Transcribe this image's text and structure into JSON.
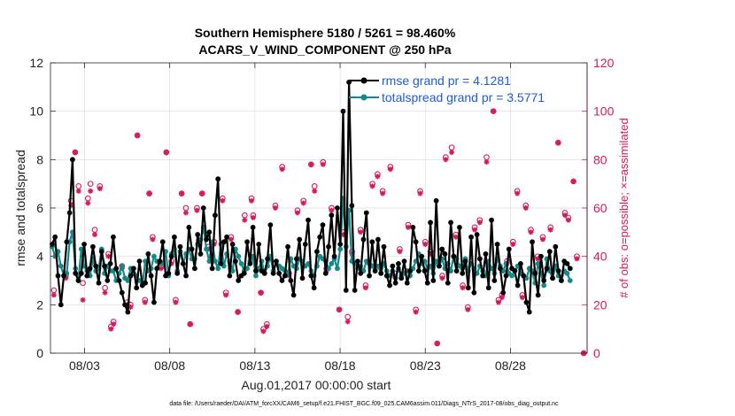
{
  "chart_data": {
    "type": "line",
    "title_line1": "Southern Hemisphere 5180 / 5261 = 98.460%",
    "title_line2": "ACARS_V_WIND_COMPONENT @ 250 hPa",
    "xlabel": "Aug.01,2017 00:00:00 start",
    "ylabel_left": "rmse and totalspread",
    "ylabel_right": "# of obs: o=possible; ×=assimilated",
    "xlim": [
      1,
      32.5
    ],
    "ylim_left": [
      0,
      12
    ],
    "ylim_right": [
      0,
      120
    ],
    "x_ticks": [
      {
        "value": 3,
        "label": "08/03"
      },
      {
        "value": 8,
        "label": "08/08"
      },
      {
        "value": 13,
        "label": "08/13"
      },
      {
        "value": 18,
        "label": "08/18"
      },
      {
        "value": 23,
        "label": "08/23"
      },
      {
        "value": 28,
        "label": "08/28"
      }
    ],
    "y_ticks_left": [
      "0",
      "2",
      "4",
      "6",
      "8",
      "10",
      "12"
    ],
    "y_ticks_right": [
      "0",
      "20",
      "40",
      "60",
      "80",
      "100",
      "120"
    ],
    "series": [
      {
        "name": "rmse grand pr = 4.1281",
        "color": "#000000",
        "axis": "left",
        "values": [
          4.5,
          4.8,
          3.2,
          2.0,
          3.2,
          4.6,
          5.8,
          8.0,
          3.3,
          3.0,
          3.3,
          4.5,
          3.2,
          3.5,
          4.4,
          3.6,
          2.9,
          4.2,
          3.6,
          3.0,
          3.7,
          4.8,
          3.5,
          3.0,
          2.5,
          2.0,
          1.7,
          3.2,
          3.5,
          2.7,
          3.8,
          2.8,
          2.9,
          4.1,
          3.2,
          2.1,
          3.5,
          3.8,
          4.6,
          3.2,
          3.3,
          4.0,
          4.8,
          3.3,
          4.4,
          3.7,
          3.2,
          5.2,
          4.3,
          3.5,
          4.9,
          4.1,
          6.0,
          4.7,
          5.0,
          3.5,
          5.7,
          7.2,
          3.7,
          4.6,
          4.8,
          3.2,
          4.5,
          3.8,
          3.0,
          3.2,
          3.3,
          4.6,
          3.7,
          5.2,
          3.4,
          4.5,
          3.4,
          3.3,
          3.9,
          5.3,
          3.3,
          3.8,
          3.3,
          3.0,
          3.2,
          4.4,
          3.0,
          2.4,
          3.9,
          4.7,
          3.1,
          4.5,
          5.5,
          3.2,
          2.7,
          4.2,
          4.8,
          5.3,
          3.3,
          4.4,
          5.7,
          4.0,
          6.0,
          4.5,
          10.0,
          2.6,
          11.2,
          6.1,
          2.6,
          3.8,
          3.3,
          4.7,
          5.8,
          3.2,
          4.6,
          3.4,
          4.7,
          3.3,
          4.4,
          3.2,
          2.8,
          3.6,
          2.9,
          3.7,
          3.1,
          3.8,
          2.9,
          3.4,
          5.2,
          4.6,
          3.4,
          4.0,
          3.4,
          2.9,
          5.4,
          3.0,
          6.3,
          3.6,
          4.3,
          4.1,
          2.9,
          5.4,
          4.0,
          3.4,
          5.2,
          3.3,
          3.8,
          2.7,
          4.8,
          2.5,
          4.9,
          3.9,
          3.2,
          4.1,
          2.7,
          5.5,
          3.0,
          4.5,
          3.5,
          2.5,
          3.2,
          4.3,
          3.5,
          3.4,
          2.8,
          3.7,
          3.2,
          2.1,
          1.7,
          4.6,
          3.3,
          2.4,
          4.0,
          3.0,
          3.5,
          4.2,
          3.1,
          4.4,
          3.4,
          3.0,
          3.8,
          3.7,
          3.5
        ]
      },
      {
        "name": "totalspread grand pr = 3.5771",
        "color": "#138a8a",
        "axis": "left",
        "values": [
          4.4,
          4.0,
          4.2,
          3.6,
          3.2,
          3.3,
          4.6,
          5.0,
          3.5,
          3.0,
          4.3,
          3.6,
          3.4,
          3.2,
          3.9,
          3.4,
          3.5,
          4.3,
          3.3,
          3.6,
          3.4,
          3.4,
          3.0,
          3.3,
          3.6,
          3.1,
          3.0,
          3.5,
          3.3,
          3.2,
          3.0,
          2.8,
          3.8,
          3.4,
          3.5,
          4.0,
          3.8,
          3.7,
          3.7,
          4.2,
          3.2,
          4.1,
          4.3,
          3.4,
          4.2,
          3.7,
          4.1,
          4.3,
          3.9,
          3.9,
          4.5,
          4.7,
          5.2,
          4.3,
          3.8,
          4.6,
          3.8,
          3.5,
          4.5,
          3.6,
          4.1,
          3.8,
          3.4,
          4.3,
          4.0,
          3.7,
          3.4,
          3.5,
          3.8,
          4.0,
          3.2,
          3.5,
          3.8,
          3.3,
          3.6,
          4.0,
          3.4,
          3.8,
          3.6,
          3.5,
          3.4,
          3.3,
          3.9,
          3.6,
          3.5,
          3.9,
          3.8,
          3.6,
          3.7,
          3.4,
          3.2,
          3.6,
          4.0,
          3.9,
          3.8,
          3.5,
          3.7,
          3.9,
          3.5,
          4.3,
          6.4,
          4.4,
          5.9,
          3.8,
          3.7,
          3.5,
          3.6,
          3.4,
          3.8,
          3.7,
          3.6,
          3.5,
          3.6,
          3.3,
          3.7,
          3.4,
          3.2,
          3.4,
          3.1,
          3.5,
          3.2,
          3.3,
          3.4,
          3.2,
          3.5,
          3.8,
          4.1,
          3.7,
          3.8,
          3.5,
          3.6,
          3.3,
          3.8,
          3.6,
          3.9,
          3.5,
          3.7,
          3.4,
          4.0,
          3.9,
          3.6,
          3.5,
          3.9,
          3.4,
          3.7,
          3.5,
          3.3,
          3.6,
          3.4,
          3.2,
          3.8,
          3.5,
          3.3,
          3.9,
          3.6,
          3.4,
          3.7,
          3.3,
          3.2,
          3.4,
          3.6,
          3.3,
          3.2,
          3.1,
          3.5,
          3.4,
          2.9,
          3.7,
          3.3,
          2.8,
          3.9,
          3.4,
          3.1,
          3.6,
          3.2,
          3.0,
          3.4,
          3.3,
          3.0
        ]
      },
      {
        "name": "# of obs possible",
        "color": "#d6185a",
        "axis": "right",
        "marker": "o",
        "points": [
          [
            1.2,
            26
          ],
          [
            1.9,
            32
          ],
          [
            2.2,
            63
          ],
          [
            2.45,
            83
          ],
          [
            2.65,
            69
          ],
          [
            2.9,
            29
          ],
          [
            3.2,
            64
          ],
          [
            3.35,
            70
          ],
          [
            3.6,
            51
          ],
          [
            3.9,
            69
          ],
          [
            4.2,
            27
          ],
          [
            4.4,
            41
          ],
          [
            4.55,
            11
          ],
          [
            4.7,
            13
          ],
          [
            5.2,
            36
          ],
          [
            5.5,
            21
          ],
          [
            5.7,
            20
          ],
          [
            6.1,
            90
          ],
          [
            6.55,
            22
          ],
          [
            6.8,
            66
          ],
          [
            7.0,
            48
          ],
          [
            7.5,
            36
          ],
          [
            7.8,
            83
          ],
          [
            8.1,
            38
          ],
          [
            8.35,
            22
          ],
          [
            8.7,
            66
          ],
          [
            8.95,
            60
          ],
          [
            9.2,
            12
          ],
          [
            9.6,
            60
          ],
          [
            9.9,
            66
          ],
          [
            10.3,
            44
          ],
          [
            10.6,
            46
          ],
          [
            11.1,
            64
          ],
          [
            11.3,
            25
          ],
          [
            11.6,
            48
          ],
          [
            12.0,
            17
          ],
          [
            12.4,
            57
          ],
          [
            12.8,
            64
          ],
          [
            12.9,
            57
          ],
          [
            13.35,
            25
          ],
          [
            13.5,
            10
          ],
          [
            13.7,
            12
          ],
          [
            14.2,
            61
          ],
          [
            14.6,
            77
          ],
          [
            15.0,
            33
          ],
          [
            15.5,
            59
          ],
          [
            15.85,
            63
          ],
          [
            16.3,
            78
          ],
          [
            16.5,
            69
          ],
          [
            17.0,
            79
          ],
          [
            17.2,
            35
          ],
          [
            17.5,
            60
          ],
          [
            17.95,
            18
          ],
          [
            18.2,
            50
          ],
          [
            18.45,
            15
          ],
          [
            18.7,
            42
          ],
          [
            19.2,
            51
          ],
          [
            19.5,
            28
          ],
          [
            19.9,
            70
          ],
          [
            20.2,
            74
          ],
          [
            20.5,
            67
          ],
          [
            20.95,
            77
          ],
          [
            21.2,
            33
          ],
          [
            21.5,
            43
          ],
          [
            22.0,
            53
          ],
          [
            22.45,
            18
          ],
          [
            22.7,
            67
          ],
          [
            23.0,
            46
          ],
          [
            23.3,
            42
          ],
          [
            23.7,
            4
          ],
          [
            24.0,
            32
          ],
          [
            24.2,
            81
          ],
          [
            24.55,
            85
          ],
          [
            24.8,
            49
          ],
          [
            25.2,
            28
          ],
          [
            25.5,
            19
          ],
          [
            25.9,
            52
          ],
          [
            26.2,
            55
          ],
          [
            26.6,
            81
          ],
          [
            27.0,
            100
          ],
          [
            27.3,
            22
          ],
          [
            27.5,
            24
          ],
          [
            27.8,
            38
          ],
          [
            28.15,
            46
          ],
          [
            28.4,
            67
          ],
          [
            28.7,
            24
          ],
          [
            28.9,
            61
          ],
          [
            29.2,
            51
          ],
          [
            29.6,
            40
          ],
          [
            29.9,
            48
          ],
          [
            30.35,
            52
          ],
          [
            30.8,
            87
          ],
          [
            31.2,
            58
          ],
          [
            31.4,
            56
          ],
          [
            31.7,
            71
          ],
          [
            31.9,
            40
          ],
          [
            32.3,
            0
          ]
        ]
      },
      {
        "name": "# of obs assimilated",
        "color": "#d6185a",
        "axis": "right",
        "marker": "*",
        "points": [
          [
            1.2,
            24
          ],
          [
            1.9,
            31
          ],
          [
            2.2,
            61
          ],
          [
            2.45,
            83
          ],
          [
            2.65,
            67
          ],
          [
            2.9,
            22
          ],
          [
            3.2,
            62
          ],
          [
            3.35,
            67
          ],
          [
            3.6,
            49
          ],
          [
            3.9,
            68
          ],
          [
            4.2,
            25
          ],
          [
            4.4,
            40
          ],
          [
            4.55,
            10
          ],
          [
            4.7,
            12
          ],
          [
            5.2,
            35
          ],
          [
            5.5,
            20
          ],
          [
            5.7,
            19
          ],
          [
            6.1,
            90
          ],
          [
            6.55,
            21
          ],
          [
            6.8,
            66
          ],
          [
            7.0,
            47
          ],
          [
            7.5,
            35
          ],
          [
            7.8,
            83
          ],
          [
            8.1,
            37
          ],
          [
            8.35,
            21
          ],
          [
            8.7,
            66
          ],
          [
            8.95,
            58
          ],
          [
            9.2,
            12
          ],
          [
            9.6,
            59
          ],
          [
            9.9,
            66
          ],
          [
            10.3,
            43
          ],
          [
            10.6,
            45
          ],
          [
            11.1,
            63
          ],
          [
            11.3,
            24
          ],
          [
            11.6,
            47
          ],
          [
            12.0,
            17
          ],
          [
            12.4,
            55
          ],
          [
            12.8,
            63
          ],
          [
            12.9,
            56
          ],
          [
            13.35,
            25
          ],
          [
            13.5,
            9
          ],
          [
            13.7,
            11
          ],
          [
            14.2,
            60
          ],
          [
            14.6,
            76
          ],
          [
            15.0,
            32
          ],
          [
            15.5,
            58
          ],
          [
            15.85,
            62
          ],
          [
            16.3,
            78
          ],
          [
            16.5,
            67
          ],
          [
            17.0,
            78
          ],
          [
            17.2,
            34
          ],
          [
            17.5,
            59
          ],
          [
            17.95,
            18
          ],
          [
            18.2,
            49
          ],
          [
            18.45,
            13
          ],
          [
            18.7,
            41
          ],
          [
            19.2,
            50
          ],
          [
            19.5,
            27
          ],
          [
            19.9,
            69
          ],
          [
            20.2,
            73
          ],
          [
            20.5,
            66
          ],
          [
            20.95,
            76
          ],
          [
            21.2,
            32
          ],
          [
            21.5,
            42
          ],
          [
            22.0,
            52
          ],
          [
            22.45,
            17
          ],
          [
            22.7,
            66
          ],
          [
            23.0,
            45
          ],
          [
            23.3,
            41
          ],
          [
            23.7,
            4
          ],
          [
            24.0,
            31
          ],
          [
            24.2,
            80
          ],
          [
            24.55,
            83
          ],
          [
            24.8,
            48
          ],
          [
            25.2,
            27
          ],
          [
            25.5,
            18
          ],
          [
            25.9,
            51
          ],
          [
            26.2,
            54
          ],
          [
            26.6,
            79
          ],
          [
            27.0,
            100
          ],
          [
            27.3,
            21
          ],
          [
            27.5,
            23
          ],
          [
            27.8,
            37
          ],
          [
            28.15,
            45
          ],
          [
            28.4,
            66
          ],
          [
            28.7,
            23
          ],
          [
            28.9,
            60
          ],
          [
            29.2,
            50
          ],
          [
            29.6,
            39
          ],
          [
            29.9,
            47
          ],
          [
            30.35,
            51
          ],
          [
            30.8,
            87
          ],
          [
            31.2,
            57
          ],
          [
            31.4,
            55
          ],
          [
            31.7,
            71
          ],
          [
            31.9,
            39
          ],
          [
            32.3,
            0
          ]
        ]
      }
    ]
  },
  "footer": "data file: /Users/raeder/DAI/ATM_forcXX/CAM6_setup/f.e21.FHIST_BGC.f09_025.CAM6assim.011/Diags_NTrS_2017-08/obs_diag_output.nc"
}
